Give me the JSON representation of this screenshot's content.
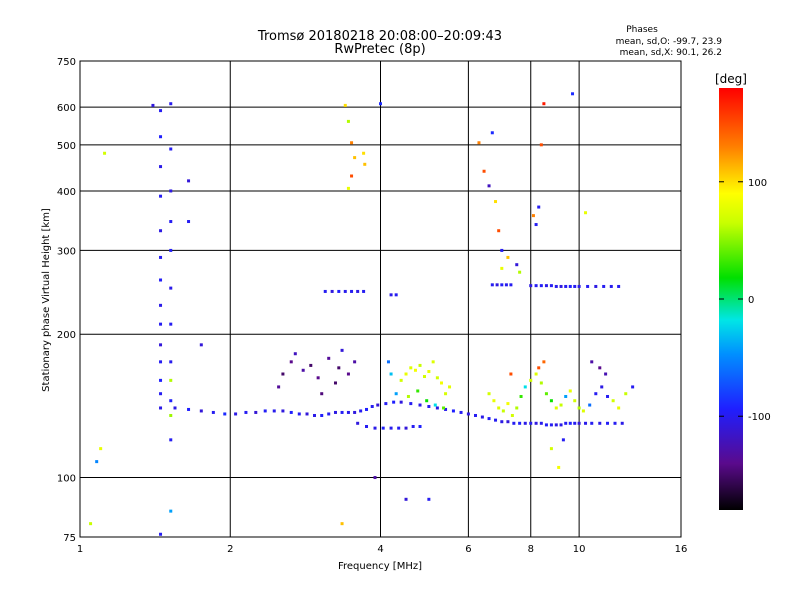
{
  "chart_data": {
    "type": "scatter",
    "title": "Tromsø 20180218 20:08:00–20:09:43",
    "subtitle": "RwPretec (8p)",
    "stats": {
      "heading": "Phases",
      "line1": "mean, sd,O: -99.7, 23.9",
      "line2": "mean, sd,X:  90.1, 26.2"
    },
    "xlabel": "Frequency [MHz]",
    "ylabel": "Stationary phase Virtual Height [km]",
    "x_scale": "log",
    "y_scale": "log",
    "xlim": [
      1,
      16
    ],
    "ylim": [
      75,
      750
    ],
    "x_ticks": [
      {
        "value": 1,
        "label": "1"
      },
      {
        "value": 2,
        "label": "2"
      },
      {
        "value": 4,
        "label": "4"
      },
      {
        "value": 6,
        "label": "6"
      },
      {
        "value": 8,
        "label": "8"
      },
      {
        "value": 10,
        "label": "10"
      },
      {
        "value": 16,
        "label": "16"
      }
    ],
    "y_ticks": [
      {
        "value": 75,
        "label": "75"
      },
      {
        "value": 100,
        "label": "100"
      },
      {
        "value": 200,
        "label": "200"
      },
      {
        "value": 300,
        "label": "300"
      },
      {
        "value": 400,
        "label": "400"
      },
      {
        "value": 500,
        "label": "500"
      },
      {
        "value": 600,
        "label": "600"
      },
      {
        "value": 750,
        "label": "750"
      }
    ],
    "grid": true,
    "colorbar": {
      "label": "[deg]",
      "range": [
        -180,
        180
      ],
      "ticks": [
        {
          "value": 100,
          "label": "100"
        },
        {
          "value": 0,
          "label": "0"
        },
        {
          "value": -100,
          "label": "-100"
        }
      ]
    },
    "points": [
      [
        1.55,
        140,
        -105
      ],
      [
        1.65,
        139,
        -95
      ],
      [
        1.75,
        138,
        -110
      ],
      [
        1.85,
        137,
        -100
      ],
      [
        1.95,
        136,
        -90
      ],
      [
        2.05,
        136,
        -105
      ],
      [
        2.15,
        137,
        -100
      ],
      [
        2.25,
        137,
        -112
      ],
      [
        2.35,
        138,
        -98
      ],
      [
        2.45,
        138,
        -102
      ],
      [
        2.55,
        138,
        -108
      ],
      [
        2.65,
        137,
        -95
      ],
      [
        2.75,
        136,
        -100
      ],
      [
        2.85,
        136,
        -110
      ],
      [
        2.95,
        135,
        -104
      ],
      [
        3.05,
        135,
        -96
      ],
      [
        3.15,
        136,
        -100
      ],
      [
        3.25,
        137,
        -106
      ],
      [
        3.35,
        137,
        -99
      ],
      [
        3.45,
        137,
        -103
      ],
      [
        3.55,
        137,
        -108
      ],
      [
        3.65,
        138,
        -100
      ],
      [
        3.75,
        139,
        -95
      ],
      [
        3.85,
        141,
        -100
      ],
      [
        3.95,
        142,
        -112
      ],
      [
        4.1,
        143,
        -100
      ],
      [
        4.25,
        144,
        -95
      ],
      [
        4.4,
        144,
        -108
      ],
      [
        4.6,
        143,
        -100
      ],
      [
        4.8,
        142,
        -104
      ],
      [
        5.0,
        141,
        -100
      ],
      [
        5.2,
        140,
        -106
      ],
      [
        5.4,
        139,
        -102
      ],
      [
        5.6,
        138,
        -95
      ],
      [
        5.8,
        137,
        -100
      ],
      [
        6.0,
        136,
        -108
      ],
      [
        6.2,
        135,
        -100
      ],
      [
        6.4,
        134,
        -104
      ],
      [
        6.6,
        133,
        -98
      ],
      [
        6.8,
        132,
        -100
      ],
      [
        7.0,
        131,
        -105
      ],
      [
        7.2,
        131,
        -110
      ],
      [
        7.4,
        130,
        -100
      ],
      [
        7.6,
        130,
        -96
      ],
      [
        7.8,
        130,
        -104
      ],
      [
        8.0,
        130,
        -100
      ],
      [
        8.2,
        130,
        -108
      ],
      [
        8.4,
        130,
        -102
      ],
      [
        8.6,
        129,
        -98
      ],
      [
        8.8,
        129,
        -100
      ],
      [
        9.0,
        129,
        -106
      ],
      [
        9.2,
        129,
        -104
      ],
      [
        9.4,
        130,
        -100
      ],
      [
        9.6,
        130,
        -95
      ],
      [
        9.8,
        130,
        -100
      ],
      [
        10.0,
        130,
        -110
      ],
      [
        10.3,
        130,
        -103
      ],
      [
        10.6,
        130,
        -100
      ],
      [
        11.0,
        130,
        -105
      ],
      [
        11.4,
        130,
        -98
      ],
      [
        11.8,
        130,
        -100
      ],
      [
        12.2,
        130,
        -104
      ],
      [
        3.6,
        130,
        -108
      ],
      [
        3.75,
        128,
        -100
      ],
      [
        3.9,
        127,
        -104
      ],
      [
        4.05,
        127,
        -96
      ],
      [
        4.2,
        127,
        -102
      ],
      [
        4.35,
        127,
        -100
      ],
      [
        4.5,
        127,
        -110
      ],
      [
        4.65,
        128,
        -100
      ],
      [
        4.8,
        128,
        -94
      ],
      [
        3.1,
        246,
        -100
      ],
      [
        3.2,
        246,
        -108
      ],
      [
        3.3,
        246,
        -96
      ],
      [
        3.4,
        246,
        -102
      ],
      [
        3.5,
        246,
        -100
      ],
      [
        3.6,
        246,
        -106
      ],
      [
        3.7,
        246,
        -100
      ],
      [
        4.2,
        242,
        -104
      ],
      [
        4.3,
        242,
        -100
      ],
      [
        6.7,
        254,
        -100
      ],
      [
        6.85,
        254,
        -108
      ],
      [
        7.0,
        254,
        -98
      ],
      [
        7.15,
        254,
        -102
      ],
      [
        7.3,
        254,
        -100
      ],
      [
        8.0,
        253,
        -106
      ],
      [
        8.2,
        253,
        -100
      ],
      [
        8.4,
        253,
        -98
      ],
      [
        8.6,
        253,
        -104
      ],
      [
        8.8,
        253,
        -100
      ],
      [
        9.0,
        252,
        -102
      ],
      [
        9.2,
        252,
        -108
      ],
      [
        9.4,
        252,
        -100
      ],
      [
        9.6,
        252,
        -96
      ],
      [
        9.8,
        252,
        -100
      ],
      [
        10.0,
        252,
        -104
      ],
      [
        10.4,
        252,
        -100
      ],
      [
        10.8,
        252,
        -106
      ],
      [
        11.2,
        252,
        -100
      ],
      [
        11.6,
        252,
        -102
      ],
      [
        12.0,
        252,
        -100
      ],
      [
        1.45,
        140,
        -105
      ],
      [
        1.45,
        150,
        -100
      ],
      [
        1.45,
        160,
        -95
      ],
      [
        1.45,
        175,
        -100
      ],
      [
        1.45,
        190,
        -110
      ],
      [
        1.45,
        210,
        -100
      ],
      [
        1.45,
        230,
        -104
      ],
      [
        1.45,
        260,
        -98
      ],
      [
        1.45,
        290,
        -100
      ],
      [
        1.45,
        330,
        -106
      ],
      [
        1.45,
        390,
        -100
      ],
      [
        1.45,
        450,
        -104
      ],
      [
        1.45,
        520,
        -96
      ],
      [
        1.45,
        590,
        -100
      ],
      [
        1.4,
        605,
        -108
      ],
      [
        1.52,
        120,
        -100
      ],
      [
        1.52,
        145,
        -96
      ],
      [
        1.52,
        175,
        -102
      ],
      [
        1.52,
        210,
        -100
      ],
      [
        1.52,
        250,
        -104
      ],
      [
        1.52,
        300,
        -98
      ],
      [
        1.52,
        345,
        -100
      ],
      [
        1.52,
        400,
        -106
      ],
      [
        1.52,
        490,
        -100
      ],
      [
        1.52,
        610,
        -102
      ],
      [
        1.52,
        135,
        55
      ],
      [
        1.52,
        160,
        60
      ],
      [
        4.4,
        160,
        70
      ],
      [
        4.5,
        165,
        80
      ],
      [
        4.6,
        170,
        75
      ],
      [
        4.7,
        168,
        85
      ],
      [
        4.8,
        172,
        65
      ],
      [
        4.9,
        163,
        70
      ],
      [
        5.0,
        167,
        80
      ],
      [
        5.1,
        175,
        75
      ],
      [
        5.2,
        162,
        70
      ],
      [
        5.3,
        158,
        85
      ],
      [
        5.4,
        150,
        72
      ],
      [
        5.5,
        155,
        78
      ],
      [
        4.55,
        148,
        60
      ],
      [
        4.75,
        152,
        30
      ],
      [
        4.95,
        145,
        20
      ],
      [
        5.15,
        142,
        -20
      ],
      [
        4.3,
        150,
        -40
      ],
      [
        4.2,
        165,
        -30
      ],
      [
        4.15,
        175,
        -60
      ],
      [
        5.35,
        140,
        40
      ],
      [
        6.6,
        150,
        70
      ],
      [
        6.75,
        145,
        80
      ],
      [
        6.9,
        140,
        75
      ],
      [
        7.05,
        138,
        65
      ],
      [
        7.2,
        143,
        85
      ],
      [
        7.35,
        135,
        70
      ],
      [
        7.5,
        140,
        60
      ],
      [
        7.65,
        148,
        30
      ],
      [
        7.8,
        155,
        -20
      ],
      [
        8.0,
        160,
        70
      ],
      [
        8.2,
        165,
        75
      ],
      [
        8.4,
        158,
        60
      ],
      [
        8.6,
        150,
        40
      ],
      [
        8.8,
        145,
        20
      ],
      [
        9.0,
        140,
        75
      ],
      [
        9.2,
        142,
        65
      ],
      [
        9.4,
        148,
        -40
      ],
      [
        9.6,
        152,
        80
      ],
      [
        9.8,
        145,
        70
      ],
      [
        10.0,
        140,
        60
      ],
      [
        10.2,
        138,
        75
      ],
      [
        10.5,
        142,
        -60
      ],
      [
        10.8,
        150,
        -100
      ],
      [
        11.1,
        155,
        -105
      ],
      [
        11.4,
        148,
        -100
      ],
      [
        11.7,
        145,
        70
      ],
      [
        12.0,
        140,
        80
      ],
      [
        12.4,
        150,
        65
      ],
      [
        12.8,
        155,
        -100
      ],
      [
        8.3,
        170,
        150
      ],
      [
        8.5,
        175,
        140
      ],
      [
        7.3,
        165,
        150
      ],
      [
        10.6,
        175,
        -130
      ],
      [
        11.0,
        170,
        -140
      ],
      [
        11.3,
        165,
        -125
      ],
      [
        2.55,
        165,
        -150
      ],
      [
        2.65,
        175,
        -140
      ],
      [
        2.8,
        168,
        -130
      ],
      [
        2.9,
        172,
        -150
      ],
      [
        3.0,
        162,
        -140
      ],
      [
        3.15,
        178,
        -135
      ],
      [
        3.3,
        170,
        -150
      ],
      [
        3.45,
        165,
        -140
      ],
      [
        2.7,
        182,
        -120
      ],
      [
        3.05,
        150,
        -145
      ],
      [
        3.35,
        185,
        -110
      ],
      [
        3.55,
        175,
        -130
      ],
      [
        2.5,
        155,
        -135
      ],
      [
        3.25,
        158,
        -150
      ],
      [
        3.4,
        605,
        100
      ],
      [
        3.45,
        560,
        60
      ],
      [
        3.5,
        505,
        130
      ],
      [
        3.55,
        470,
        110
      ],
      [
        3.45,
        405,
        80
      ],
      [
        3.5,
        430,
        150
      ],
      [
        3.7,
        480,
        100
      ],
      [
        3.72,
        455,
        110
      ],
      [
        6.3,
        505,
        130
      ],
      [
        6.45,
        440,
        150
      ],
      [
        6.6,
        410,
        -120
      ],
      [
        6.8,
        380,
        100
      ],
      [
        7.0,
        300,
        -100
      ],
      [
        6.9,
        330,
        150
      ],
      [
        7.2,
        290,
        110
      ],
      [
        7.5,
        280,
        -110
      ],
      [
        7.0,
        275,
        80
      ],
      [
        7.6,
        270,
        60
      ],
      [
        8.2,
        340,
        -100
      ],
      [
        8.3,
        370,
        -100
      ],
      [
        8.1,
        355,
        130
      ],
      [
        8.4,
        500,
        150
      ],
      [
        8.5,
        610,
        170
      ],
      [
        9.7,
        640,
        -90
      ],
      [
        10.3,
        360,
        80
      ],
      [
        8.8,
        115,
        70
      ],
      [
        9.1,
        105,
        85
      ],
      [
        9.3,
        120,
        -100
      ],
      [
        1.75,
        190,
        -110
      ],
      [
        1.65,
        345,
        -100
      ],
      [
        1.65,
        420,
        -110
      ],
      [
        1.12,
        480,
        70
      ],
      [
        1.1,
        115,
        80
      ],
      [
        1.08,
        108,
        -50
      ],
      [
        1.05,
        80,
        65
      ],
      [
        1.52,
        85,
        -40
      ],
      [
        1.45,
        76,
        -100
      ],
      [
        3.35,
        80,
        110
      ],
      [
        4.0,
        610,
        -90
      ],
      [
        3.9,
        100,
        -130
      ],
      [
        4.5,
        90,
        -110
      ],
      [
        5.0,
        90,
        -100
      ],
      [
        6.7,
        530,
        -90
      ]
    ]
  }
}
